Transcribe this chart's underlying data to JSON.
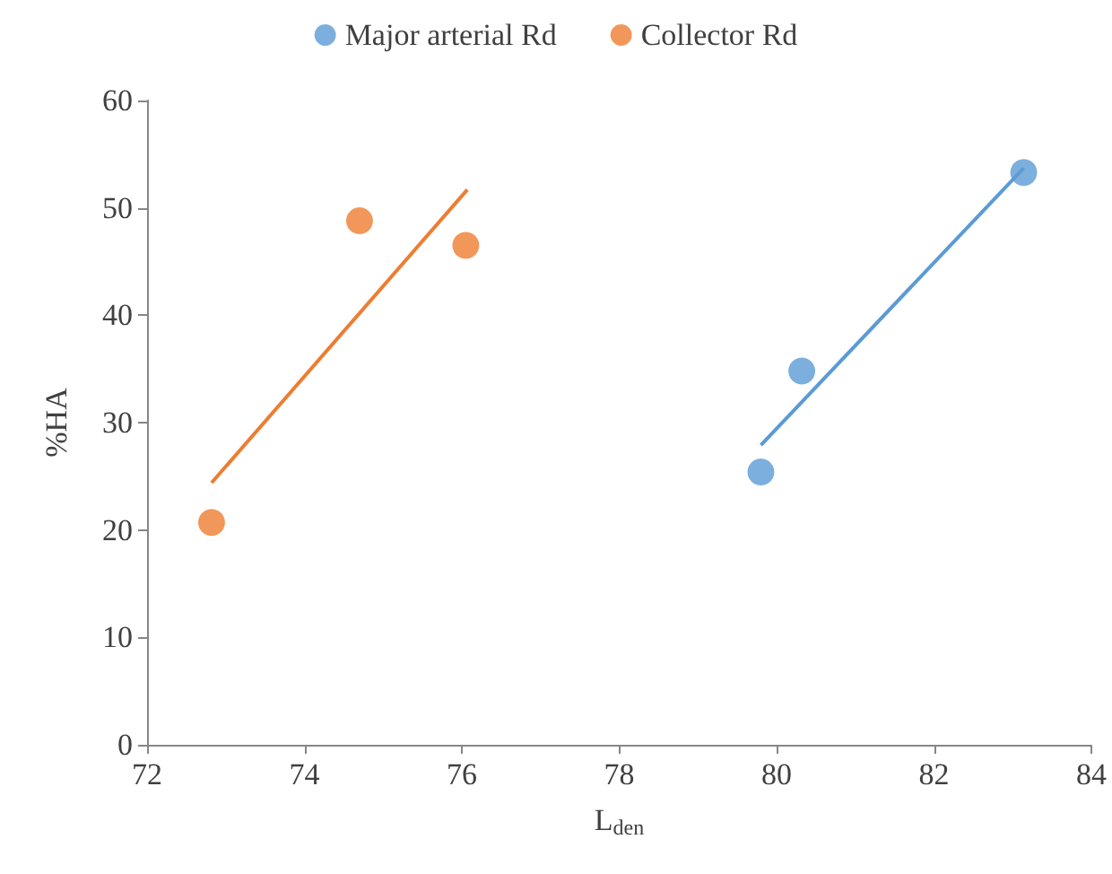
{
  "chart_data": {
    "type": "scatter",
    "xlabel": "L$_{den}$",
    "ylabel": "%HA",
    "xlim": [
      72,
      84
    ],
    "xticks": [
      72,
      74,
      76,
      78,
      80,
      82,
      84
    ],
    "ylim": [
      0,
      60
    ],
    "yticks": [
      0,
      10,
      20,
      30,
      40,
      50,
      60
    ],
    "grid": false,
    "legend": "top",
    "line_style": "solid",
    "series": [
      {
        "name": "Major arterial Rd",
        "color": "#5b9bd5",
        "marker": "circle",
        "x": [
          79.8,
          80.32,
          83.14
        ],
        "values": [
          25.4,
          34.8,
          53.3
        ]
      },
      {
        "name": "Collector Rd",
        "color": "#ed7d31",
        "marker": "circle",
        "x": [
          72.82,
          74.7,
          76.05
        ],
        "values": [
          20.7,
          48.8,
          46.5
        ]
      },
      {
        "type": "line",
        "color": "#5b9bd5",
        "marker": "none",
        "x": [
          79.8,
          83.14
        ],
        "values": [
          27.9,
          53.7
        ]
      },
      {
        "type": "line",
        "color": "#ed7d31",
        "marker": "none",
        "x": [
          72.82,
          76.07
        ],
        "values": [
          24.4,
          51.7
        ]
      }
    ]
  }
}
